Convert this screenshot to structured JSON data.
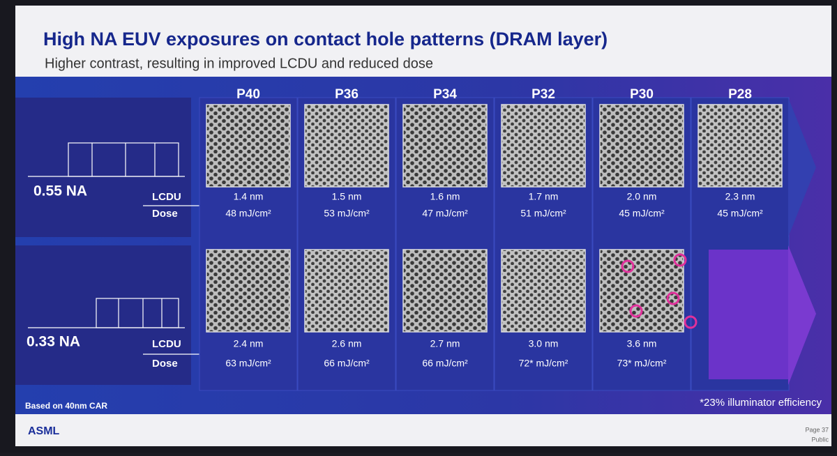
{
  "header": {
    "title": "High NA EUV exposures on contact hole patterns (DRAM layer)",
    "subtitle": "Higher contrast, resulting in improved LCDU and reduced dose"
  },
  "table": {
    "columns": [
      "P40",
      "P36",
      "P34",
      "P32",
      "P30",
      "P28"
    ],
    "rows": [
      {
        "label": "0.55 NA",
        "metrics": [
          {
            "name": "LCDU",
            "values": [
              "1.4 nm",
              "1.5 nm",
              "1.6 nm",
              "1.7 nm",
              "2.0 nm",
              "2.3 nm"
            ]
          },
          {
            "name": "Dose",
            "values": [
              "48 mJ/cm²",
              "53 mJ/cm²",
              "47 mJ/cm²",
              "51 mJ/cm²",
              "45 mJ/cm²",
              "45 mJ/cm²"
            ]
          }
        ]
      },
      {
        "label": "0.33 NA",
        "metrics": [
          {
            "name": "LCDU",
            "values": [
              "2.4 nm",
              "2.6 nm",
              "2.7 nm",
              "3.0 nm",
              "3.6 nm"
            ]
          },
          {
            "name": "Dose",
            "values": [
              "63 mJ/cm²",
              "66 mJ/cm²",
              "66 mJ/cm²",
              "72* mJ/cm²",
              "73* mJ/cm²"
            ]
          }
        ]
      }
    ]
  },
  "footnotes": {
    "basis": "Based on 40nm CAR",
    "efficiency": "*23% illuminator efficiency"
  },
  "footer": {
    "brand": "ASML",
    "page": "Page 37",
    "classification": "Public"
  }
}
